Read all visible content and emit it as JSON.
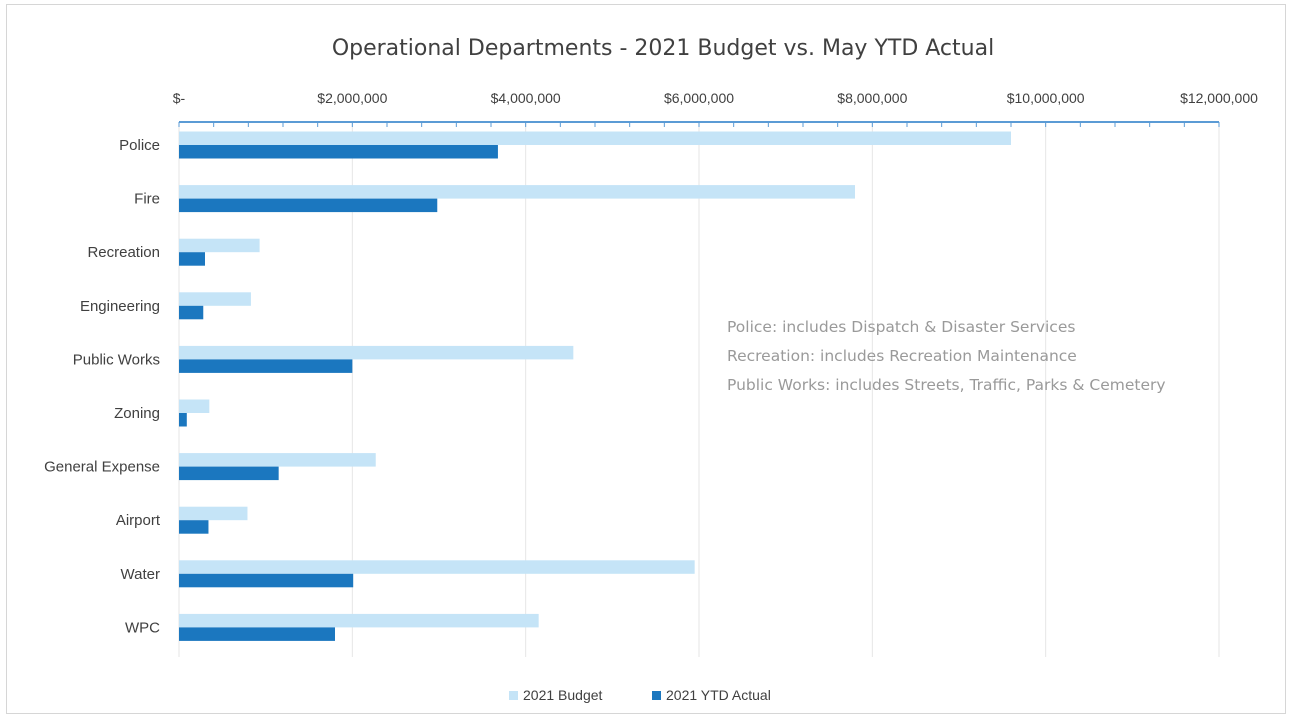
{
  "chart_data": {
    "type": "bar",
    "orientation": "horizontal",
    "title": "Operational Departments - 2021  Budget vs. May YTD Actual",
    "categories": [
      "Police",
      "Fire",
      "Recreation",
      "Engineering",
      "Public Works",
      "Zoning",
      "General Expense",
      "Airport",
      "Water",
      "WPC"
    ],
    "series": [
      {
        "name": "2021 Budget",
        "color": "#c5e4f7",
        "values": [
          9600000,
          7800000,
          930000,
          830000,
          4550000,
          350000,
          2270000,
          790000,
          5950000,
          4150000
        ]
      },
      {
        "name": "2021 YTD Actual",
        "color": "#1b77bf",
        "values": [
          3680000,
          2980000,
          300000,
          280000,
          2000000,
          90000,
          1150000,
          340000,
          2010000,
          1800000
        ]
      }
    ],
    "x_axis": {
      "position": "top",
      "min": 0,
      "max": 12000000,
      "ticks": [
        0,
        2000000,
        4000000,
        6000000,
        8000000,
        10000000,
        12000000
      ],
      "tick_labels": [
        "$-",
        "$2,000,000",
        "$4,000,000",
        "$6,000,000",
        "$8,000,000",
        "$10,000,000",
        "$12,000,000"
      ],
      "grid": true
    },
    "legend": {
      "position": "bottom",
      "entries": [
        "2021 Budget",
        "2021 YTD Actual"
      ]
    },
    "annotation": [
      "Police:  includes Dispatch & Disaster Services",
      "Recreation:  includes Recreation Maintenance",
      "Public Works:  includes Streets, Traffic, Parks & Cemetery"
    ]
  }
}
